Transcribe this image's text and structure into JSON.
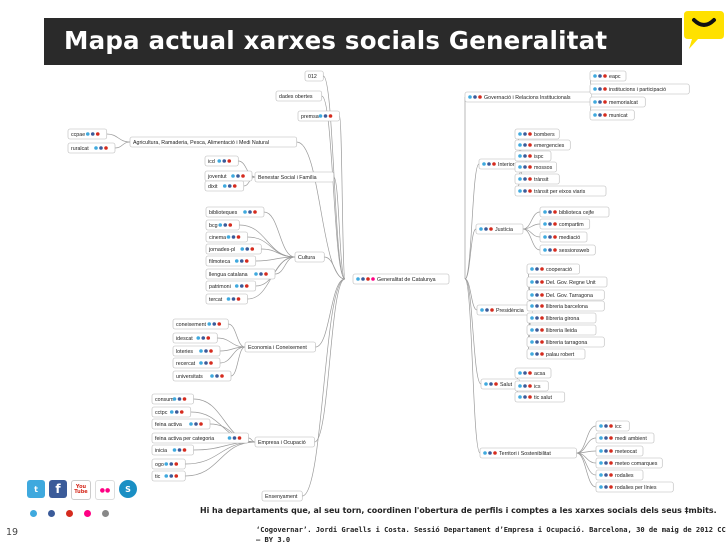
{
  "slide": {
    "title": "Mapa actual xarxes socials Generalitat",
    "page_number": "19",
    "footer_note": "Hi ha departaments que, al seu torn, coordinen l'obertura de perfils i comptes a les xarxes socials dels seus ‡mbits.",
    "footer_credit": "‘Cogovernar’. Jordi Graells i Costa. Sessió Departament d’Empresa i Ocupació. Barcelona, 30 de maig de 2012  CC – BY 3.0",
    "social_icons": [
      "twitter-icon",
      "facebook-icon",
      "youtube-icon",
      "flickr-icon",
      "slideshare-icon"
    ],
    "social_icon_glyphs": [
      "t",
      "f",
      "You Tube",
      "●●",
      "S"
    ]
  },
  "mindmap": {
    "center": "Generalitat de Catalunya",
    "branches": [
      {
        "label": "Agricultura, Ramaderia, Pesca, Alimentació i Medi Natural",
        "children": [
          "ccpae",
          "ruralcat"
        ]
      },
      {
        "label": "Benestar Social i Família",
        "children": [
          "icd",
          "joventut",
          "dixit"
        ]
      },
      {
        "label": "Cultura",
        "children": [
          "biblioteques",
          "bcg",
          "cinema",
          "jornades-pl",
          "filmoteca",
          "llengua catalana",
          "patrimoni",
          "tercat"
        ]
      },
      {
        "label": "Economia i Coneixement",
        "children": [
          "coneixement",
          "idescat",
          "loteries",
          "recercat",
          "universitats"
        ]
      },
      {
        "label": "Empresa i Ocupació",
        "children": [
          "consum",
          "cctpc",
          "feina activa",
          "feina activa per categoria",
          "inicia",
          "ogo",
          "tic"
        ]
      },
      {
        "label": "Ensenyament",
        "children": []
      },
      {
        "label": "Governació i Relacions Institucionals",
        "children": [
          "eapc",
          "institucions i participació",
          "memorialcat",
          "municat"
        ]
      },
      {
        "label": "Interior",
        "children": [
          "bombers",
          "emergencies",
          "ispc",
          "mossos",
          "trànsit",
          "trànsit per eixos viaris"
        ]
      },
      {
        "label": "Justícia",
        "children": [
          "biblioteca cejfe",
          "compartim",
          "mediació",
          "sessionsweb"
        ]
      },
      {
        "label": "Presidència",
        "children": [
          "cooperació",
          "Del. Gov. Regne Unit",
          "Del. Gov. Tarragona",
          "llibreria barcelona",
          "llibreria girona",
          "llibreria lleida",
          "llibreria tarragona",
          "palau robert"
        ]
      },
      {
        "label": "Salut",
        "children": [
          "acsa",
          "ics",
          "tic salut"
        ]
      },
      {
        "label": "Territori i Sostenibilitat",
        "children": [
          "icc",
          "medi ambient",
          "meteocat",
          "meteo comarques",
          "rodalies",
          "rodalies per línies"
        ]
      }
    ],
    "top_nodes": [
      "012",
      "dades obertes",
      "premsa"
    ]
  },
  "colors": {
    "title_bar": "#2a2a2a",
    "speech_bubble": "#ffe100",
    "edge": "#9a9a9a",
    "twitter": "#3fa9de",
    "facebook": "#3b5b99",
    "youtube": "#d52b1e",
    "flickr": "#ff0084",
    "slideshare": "#1a8fc4",
    "dots": [
      "#3fa9de",
      "#3b5b99",
      "#d52b1e",
      "#ff0084",
      "#888888"
    ]
  }
}
